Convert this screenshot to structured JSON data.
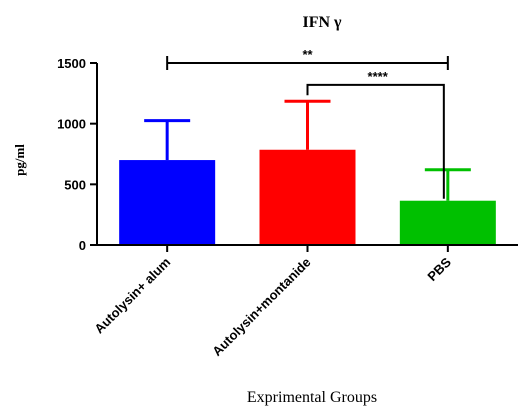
{
  "chart_data": {
    "type": "bar",
    "title": "IFN γ",
    "ylabel": "pg/ml",
    "xlabel": "Exprimental Groups",
    "ylim": [
      0,
      1500
    ],
    "yticks": [
      "0",
      "500",
      "1000",
      "1500"
    ],
    "categories": [
      "Autolysin+ alum",
      "Autolysin+montanide",
      "PBS"
    ],
    "values": [
      700,
      785,
      365
    ],
    "error_upper": [
      1025,
      1185,
      620
    ],
    "colors": [
      "#0000ff",
      "#ff0000",
      "#00c000"
    ],
    "grid": false,
    "significance": [
      {
        "from": "Autolysin+ alum",
        "to": "PBS",
        "label": "**",
        "y": 1500
      },
      {
        "from": "Autolysin+montanide",
        "to": "PBS",
        "label": "****",
        "y": 1320
      }
    ]
  }
}
